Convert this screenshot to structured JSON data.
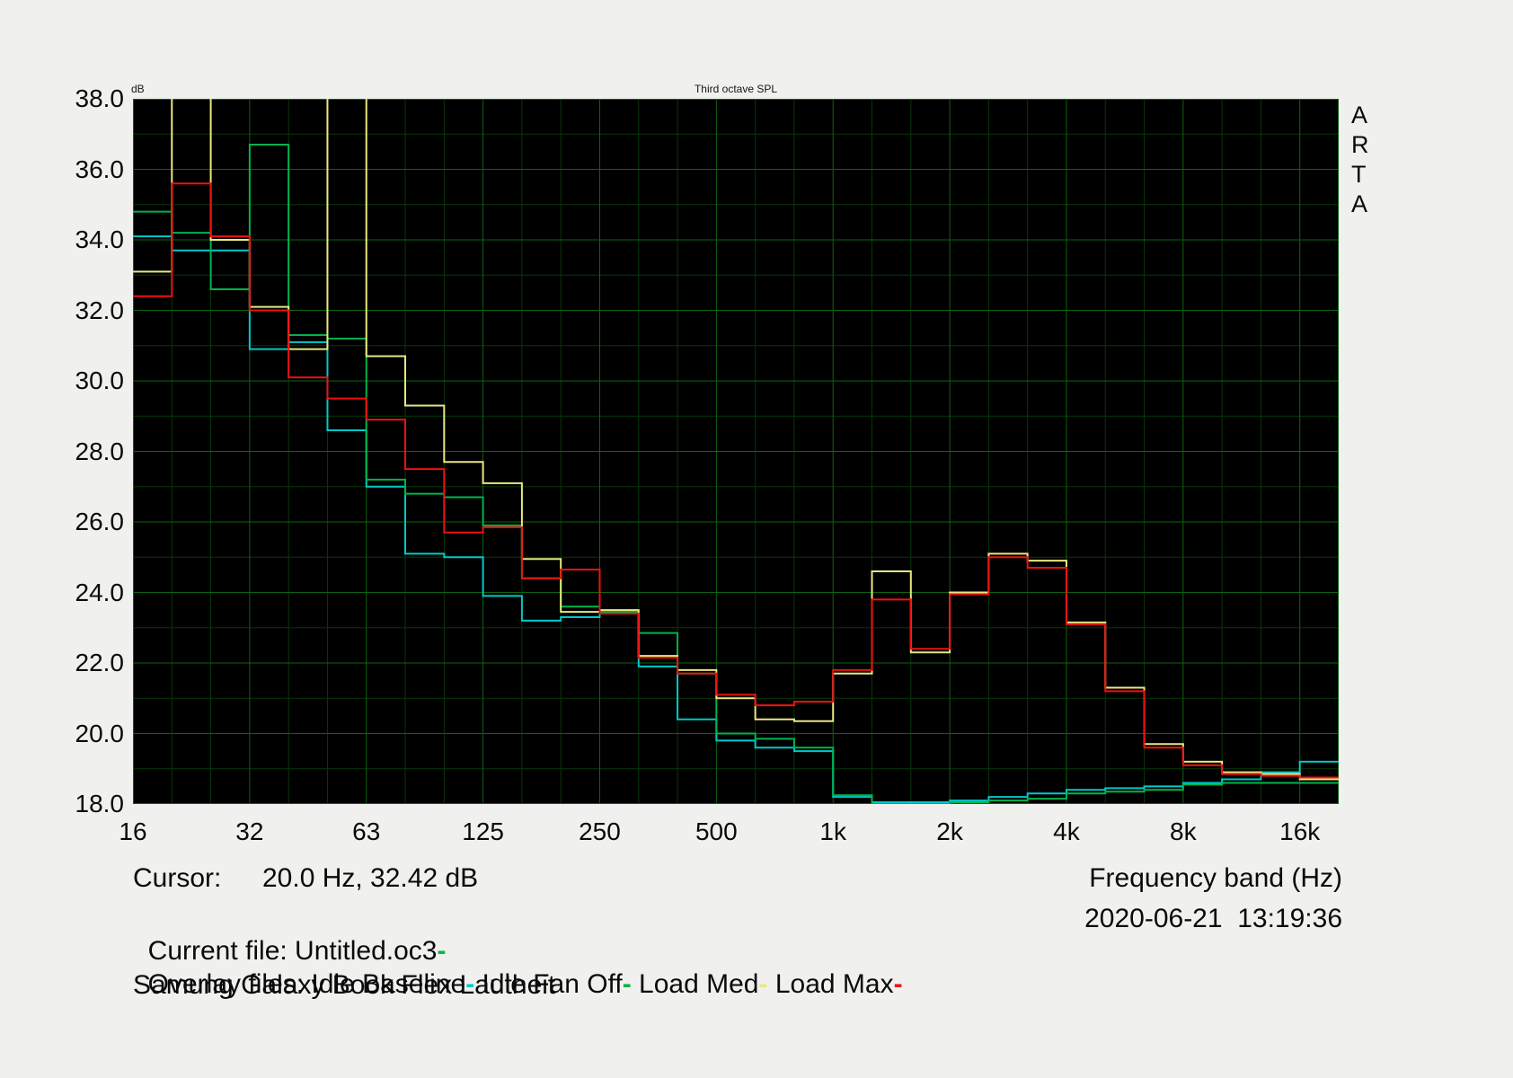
{
  "chart": {
    "title": "Third octave SPL",
    "y_unit_label": "dB",
    "brand": "ARTA",
    "y_axis_ticks": [
      "38.0",
      "36.0",
      "34.0",
      "32.0",
      "30.0",
      "28.0",
      "26.0",
      "24.0",
      "22.0",
      "20.0",
      "18.0"
    ],
    "x_axis_ticks": [
      "16",
      "32",
      "63",
      "125",
      "250",
      "500",
      "1k",
      "2k",
      "4k",
      "8k",
      "16k"
    ],
    "colors": {
      "plot_background": "#000000",
      "grid_major": "#0e640e",
      "grid_minor": "#063806",
      "page_background": "#f0f0ee"
    }
  },
  "chart_data": {
    "type": "line",
    "style": "step",
    "title": "Third octave SPL",
    "xlabel": "Frequency band (Hz)",
    "ylabel": "dB",
    "ylim": [
      18,
      38
    ],
    "grid": true,
    "x_scale": "log-third-octave",
    "categories": [
      "16",
      "20",
      "25",
      "31.5",
      "40",
      "50",
      "63",
      "80",
      "100",
      "125",
      "160",
      "200",
      "250",
      "315",
      "400",
      "500",
      "630",
      "800",
      "1000",
      "1250",
      "1600",
      "2000",
      "2500",
      "3150",
      "4000",
      "5000",
      "6300",
      "8000",
      "10000",
      "12500",
      "16000"
    ],
    "series": [
      {
        "name": "Idle Baseline",
        "color": "#00c9c9",
        "values": [
          34.1,
          33.7,
          33.7,
          30.9,
          31.1,
          28.6,
          27.0,
          25.1,
          25.0,
          23.9,
          23.2,
          23.3,
          23.4,
          21.9,
          20.4,
          19.8,
          19.6,
          19.5,
          18.2,
          18.05,
          18.05,
          18.1,
          18.2,
          18.3,
          18.4,
          18.45,
          18.5,
          18.6,
          18.7,
          18.9,
          19.2
        ]
      },
      {
        "name": "Idle Fan Off",
        "color": "#00b44c",
        "values": [
          34.8,
          34.2,
          32.6,
          36.7,
          31.3,
          31.2,
          27.2,
          26.8,
          26.7,
          25.9,
          24.4,
          23.6,
          23.45,
          22.85,
          21.7,
          20.0,
          19.85,
          19.6,
          18.25,
          18.0,
          18.0,
          18.05,
          18.1,
          18.15,
          18.3,
          18.35,
          18.4,
          18.55,
          18.6,
          18.6,
          18.6
        ]
      },
      {
        "name": "Load Med",
        "color": "#e8e882",
        "values": [
          33.1,
          41.0,
          34.0,
          32.1,
          30.9,
          41.0,
          30.7,
          29.3,
          27.7,
          27.1,
          24.95,
          23.45,
          23.5,
          22.2,
          21.8,
          21.0,
          20.4,
          20.35,
          21.7,
          24.6,
          22.3,
          24.0,
          25.1,
          24.9,
          23.15,
          21.3,
          19.7,
          19.2,
          18.9,
          18.85,
          18.7
        ]
      },
      {
        "name": "Load Max",
        "color": "#ee1111",
        "values": [
          32.4,
          35.6,
          34.1,
          32.0,
          30.1,
          29.5,
          28.9,
          27.5,
          25.7,
          25.85,
          24.4,
          24.65,
          23.4,
          22.15,
          21.7,
          21.1,
          20.8,
          20.9,
          21.8,
          23.8,
          22.4,
          23.95,
          25.0,
          24.7,
          23.1,
          21.2,
          19.6,
          19.1,
          18.85,
          18.8,
          18.75
        ]
      }
    ]
  },
  "footer": {
    "cursor_label": "Cursor:",
    "cursor_value": "20.0 Hz, 32.42 dB",
    "frequency_band_label": "Frequency band (Hz)",
    "current_file_label": "Current file: Untitled.oc3",
    "current_file_dash": "-",
    "current_file_dash_color": "#00bb44",
    "datetime": "2020-06-21  13:19:36",
    "overlay_files_label": "Overlay files:",
    "device_note": "Samung Galaxy Book Flex Lautheit"
  }
}
